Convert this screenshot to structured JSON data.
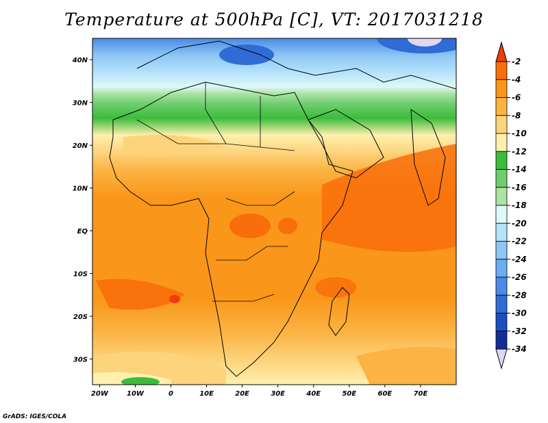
{
  "title": "Temperature at 500hPa [C], VT: 2017031218",
  "credit": "GrADS: IGES/COLA",
  "map": {
    "lon_range": [
      -22,
      80
    ],
    "lat_range": [
      -36,
      45
    ],
    "x_ticks": [
      "20W",
      "10W",
      "0",
      "10E",
      "20E",
      "30E",
      "40E",
      "50E",
      "60E",
      "70E"
    ],
    "y_ticks": [
      "40N",
      "30N",
      "20N",
      "10N",
      "EQ",
      "10S",
      "20S",
      "30S"
    ]
  },
  "colorbar": {
    "levels": [
      "-2",
      "-4",
      "-6",
      "-8",
      "-10",
      "-12",
      "-14",
      "-16",
      "-18",
      "-20",
      "-22",
      "-24",
      "-26",
      "-28",
      "-30",
      "-32",
      "-34"
    ],
    "colors": [
      "#f03c0a",
      "#f86e0a",
      "#fa9619",
      "#fbb444",
      "#fdd37c",
      "#fff0ae",
      "#3cbc3c",
      "#6ecd6e",
      "#abe3a3",
      "#dff8f8",
      "#b5e3fa",
      "#8ec7f5",
      "#69acf0",
      "#4b8ae6",
      "#2f6cd6",
      "#1c4ebf",
      "#142c97",
      "#0a1268"
    ],
    "top_color": "#f03c0a",
    "bottom_color": "#e1d7f5"
  }
}
